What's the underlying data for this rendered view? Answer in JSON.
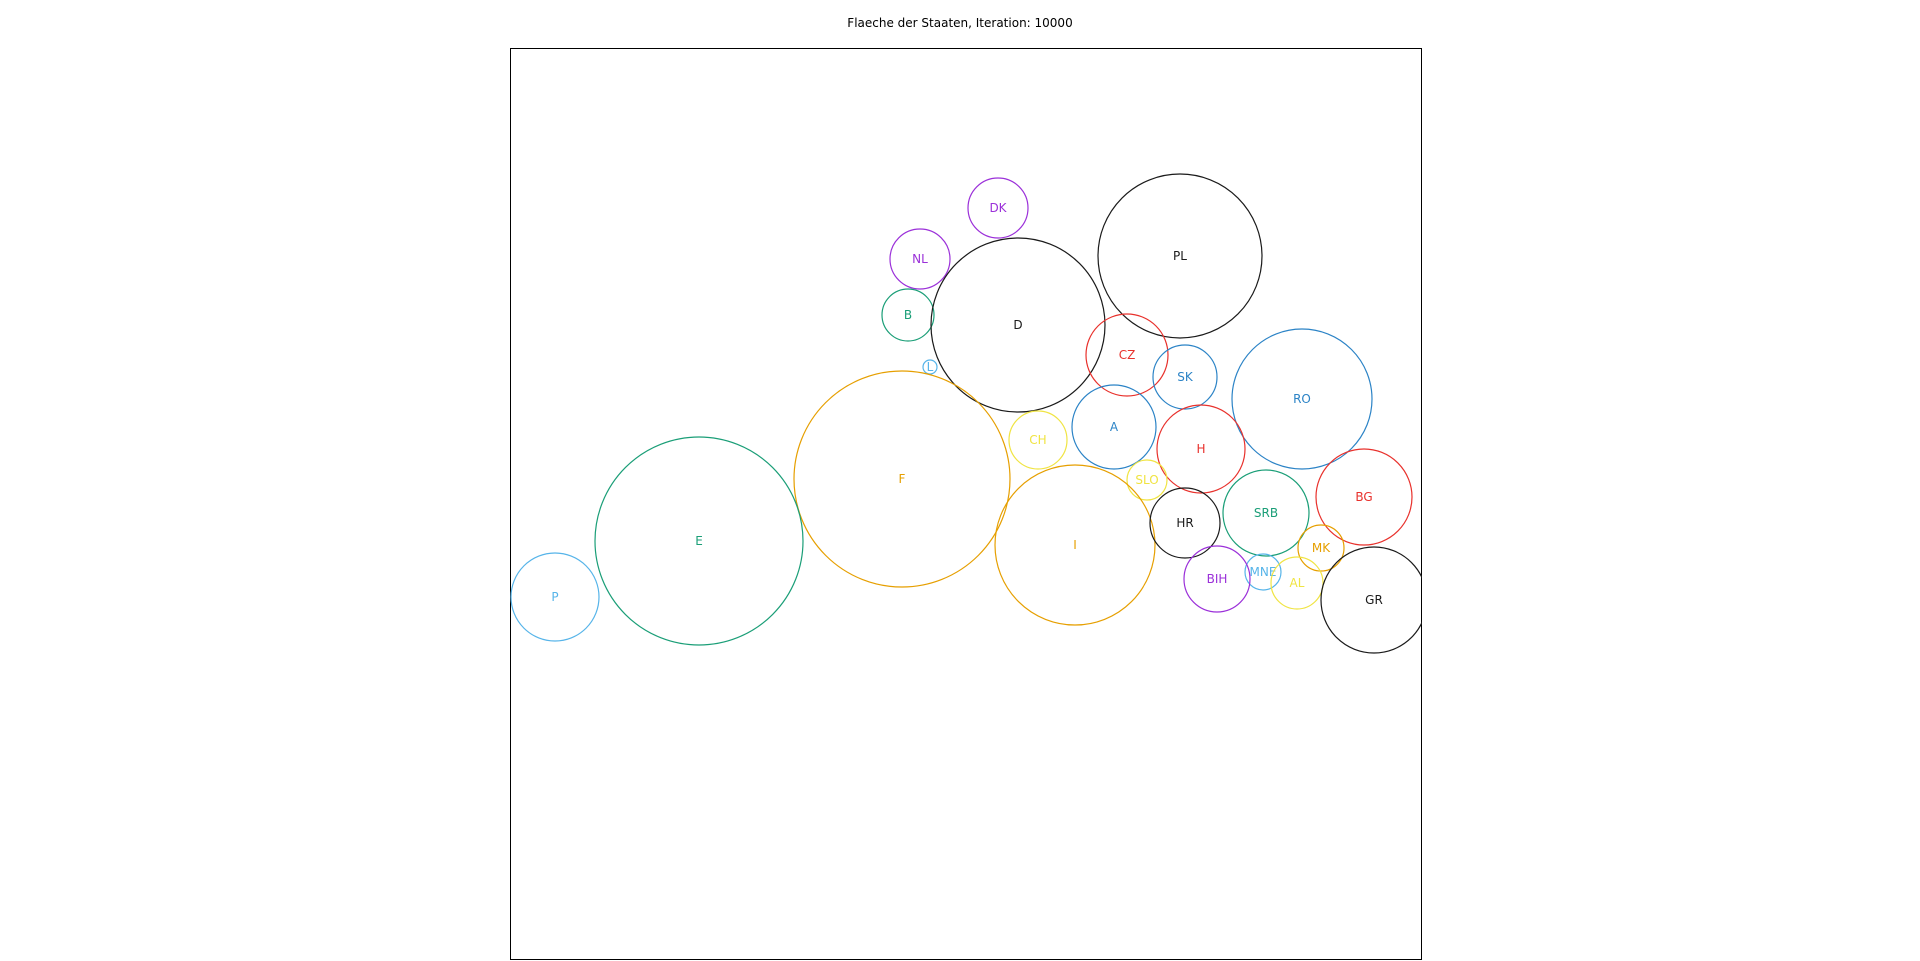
{
  "title": "Flaeche der Staaten, Iteration: 10000",
  "colors": {
    "black": "#1a1a1a",
    "purple": "#9b30d9",
    "teal": "#1a9e77",
    "blue": "#2b83c6",
    "lightblue": "#56b4e9",
    "orange": "#e69f00",
    "yellow": "#f0e442",
    "red": "#e8312c"
  },
  "states": [
    {
      "label": "DK",
      "color": "purple"
    },
    {
      "label": "NL",
      "color": "purple"
    },
    {
      "label": "B",
      "color": "teal"
    },
    {
      "label": "L",
      "color": "lightblue"
    },
    {
      "label": "D",
      "color": "black"
    },
    {
      "label": "PL",
      "color": "black"
    },
    {
      "label": "CZ",
      "color": "red"
    },
    {
      "label": "SK",
      "color": "blue"
    },
    {
      "label": "RO",
      "color": "blue"
    },
    {
      "label": "A",
      "color": "blue"
    },
    {
      "label": "CH",
      "color": "yellow"
    },
    {
      "label": "H",
      "color": "red"
    },
    {
      "label": "F",
      "color": "orange"
    },
    {
      "label": "SLO",
      "color": "yellow"
    },
    {
      "label": "BG",
      "color": "red"
    },
    {
      "label": "I",
      "color": "orange"
    },
    {
      "label": "HR",
      "color": "black"
    },
    {
      "label": "SRB",
      "color": "teal"
    },
    {
      "label": "E",
      "color": "teal"
    },
    {
      "label": "MK",
      "color": "orange"
    },
    {
      "label": "MNE",
      "color": "lightblue"
    },
    {
      "label": "BIH",
      "color": "purple"
    },
    {
      "label": "AL",
      "color": "yellow"
    },
    {
      "label": "P",
      "color": "lightblue"
    },
    {
      "label": "GR",
      "color": "black"
    }
  ]
}
